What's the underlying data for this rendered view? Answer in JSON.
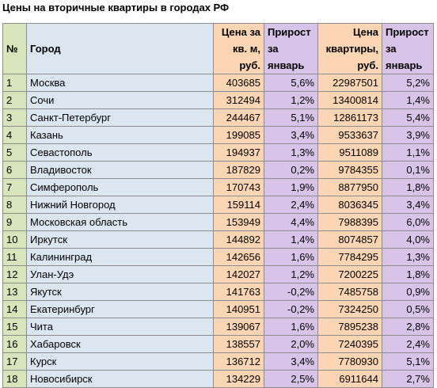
{
  "title": "Цены на вторичные квартиры в городах РФ",
  "columns": {
    "num": "№",
    "city": "Город",
    "price_per_m": [
      "Цена за",
      "кв. м,",
      "руб."
    ],
    "growth1": [
      "Прирост",
      "за",
      "январь"
    ],
    "price": [
      "Цена",
      "квартиры,",
      "руб."
    ],
    "growth2": [
      "Прирост",
      "за",
      "январь"
    ]
  },
  "rows": [
    {
      "n": "1",
      "city": "Москва",
      "ppm": "403685",
      "g1": "5,6%",
      "price": "22987501",
      "g2": "5,2%"
    },
    {
      "n": "2",
      "city": "Сочи",
      "ppm": "312494",
      "g1": "1,2%",
      "price": "13400814",
      "g2": "1,4%"
    },
    {
      "n": "3",
      "city": "Санкт-Петербург",
      "ppm": "244467",
      "g1": "5,1%",
      "price": "12861173",
      "g2": "5,4%"
    },
    {
      "n": "4",
      "city": "Казань",
      "ppm": "199085",
      "g1": "3,4%",
      "price": "9533637",
      "g2": "3,9%"
    },
    {
      "n": "5",
      "city": "Севастополь",
      "ppm": "194937",
      "g1": "1,3%",
      "price": "9511089",
      "g2": "1,1%"
    },
    {
      "n": "6",
      "city": "Владивосток",
      "ppm": "187829",
      "g1": "0,2%",
      "price": "9784355",
      "g2": "0,1%"
    },
    {
      "n": "7",
      "city": "Симферополь",
      "ppm": "170743",
      "g1": "1,9%",
      "price": "8877950",
      "g2": "1,8%"
    },
    {
      "n": "8",
      "city": "Нижний Новгород",
      "ppm": "159114",
      "g1": "2,4%",
      "price": "8036345",
      "g2": "3,4%"
    },
    {
      "n": "9",
      "city": "Московская область",
      "ppm": "153949",
      "g1": "4,4%",
      "price": "7988395",
      "g2": "6,0%"
    },
    {
      "n": "10",
      "city": "Иркутск",
      "ppm": "144892",
      "g1": "1,4%",
      "price": "8074857",
      "g2": "4,0%"
    },
    {
      "n": "11",
      "city": "Калининград",
      "ppm": "142656",
      "g1": "1,6%",
      "price": "7784295",
      "g2": "1,3%"
    },
    {
      "n": "12",
      "city": "Улан-Удэ",
      "ppm": "142027",
      "g1": "1,2%",
      "price": "7200225",
      "g2": "1,8%"
    },
    {
      "n": "13",
      "city": "Якутск",
      "ppm": "141763",
      "g1": "-0,2%",
      "price": "7485758",
      "g2": "0,9%"
    },
    {
      "n": "14",
      "city": "Екатеринбург",
      "ppm": "140951",
      "g1": "-0,2%",
      "price": "7324250",
      "g2": "0,5%"
    },
    {
      "n": "15",
      "city": "Чита",
      "ppm": "139067",
      "g1": "1,6%",
      "price": "7895238",
      "g2": "2,8%"
    },
    {
      "n": "16",
      "city": "Хабаровск",
      "ppm": "138557",
      "g1": "2,0%",
      "price": "7240395",
      "g2": "2,4%"
    },
    {
      "n": "17",
      "city": "Курск",
      "ppm": "136712",
      "g1": "3,4%",
      "price": "7780930",
      "g2": "5,1%"
    },
    {
      "n": "18",
      "city": "Новосибирск",
      "ppm": "134229",
      "g1": "2,5%",
      "price": "6911644",
      "g2": "2,7%"
    }
  ]
}
